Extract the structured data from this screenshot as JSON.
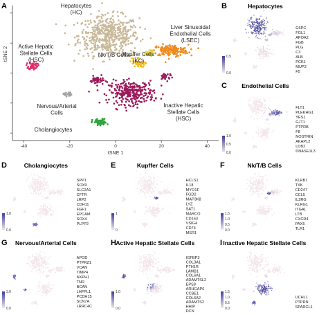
{
  "chart_data": [
    {
      "type": "scatter",
      "panel": "A",
      "xlabel": "tSNE 1",
      "ylabel": "tSNE 2",
      "xlim": [
        -45,
        45
      ],
      "ylim": [
        -45,
        45
      ],
      "xticks": [
        "-40",
        "-20",
        "0",
        "20",
        "40"
      ],
      "yticks": [
        "-40",
        "-20",
        "0",
        "20",
        "40"
      ],
      "grid": false,
      "series": [
        {
          "name": "Hepatocytes (HC)",
          "label_lines": [
            "Hepatocytes",
            "(HC)"
          ],
          "color": "#c9b89a",
          "center": [
            -3,
            25
          ],
          "spread": [
            12,
            12
          ],
          "n": 520
        },
        {
          "name": "Liver Sinusoidal Endothelial Cells (LSEC)",
          "label_lines": [
            "Liver Sinusoidal",
            "Endothelial Cells",
            "(LSEC)"
          ],
          "color": "#f08a1c",
          "center": [
            24,
            15
          ],
          "spread": [
            7,
            3.5
          ],
          "n": 160
        },
        {
          "name": "Active Hepatic Stellate Cells (HSC)",
          "label_lines": [
            "Active Hepatic",
            "Stellate Cells",
            "(HSC)"
          ],
          "color": "#e0306a",
          "center": [
            -36,
            5
          ],
          "spread": [
            1.8,
            2.5
          ],
          "n": 50
        },
        {
          "name": "Nk/T/B Cells",
          "label_lines": [
            "Nk/T/B Cells"
          ],
          "color": "#e8e24a",
          "center": [
            14,
            13
          ],
          "spread": [
            2.5,
            1.8
          ],
          "n": 35
        },
        {
          "name": "Kupffer Cells (KC)",
          "label_lines": [
            "Kupffer Cells",
            "(KC)"
          ],
          "color": "#f7bd1e",
          "center": [
            10,
            6
          ],
          "spread": [
            2.5,
            1.8
          ],
          "n": 40
        },
        {
          "name": "Nervous/Arterial Cells",
          "label_lines": [
            "Nervous/Arterial",
            "Cells"
          ],
          "color": "#a3a3a3",
          "center": [
            -21,
            -14
          ],
          "spread": [
            1.6,
            1.4
          ],
          "n": 25
        },
        {
          "name": "Cholangiocytes",
          "label_lines": [
            "Cholangiocytes"
          ],
          "color": "#2fa23a",
          "center": [
            -7,
            -33
          ],
          "spread": [
            2.8,
            2.2
          ],
          "n": 60
        },
        {
          "name": "Inactive Hepatic Stellate Cells (HSC)",
          "label_lines": [
            "Inactive Hepatic",
            "Stellate Cells",
            "(HSC)"
          ],
          "color": "#9b1b5b",
          "center": [
            7,
            -13
          ],
          "spread": [
            9,
            7
          ],
          "n": 300
        }
      ]
    }
  ],
  "cluster_labels": [
    [
      "Hepatocytes",
      "(HC)"
    ],
    [
      "Liver Sinusoidal",
      "Endothelial Cells",
      "(LSEC)"
    ],
    [
      "Active Hepatic",
      "Stellate Cells",
      "(HSC)"
    ],
    [
      "Nk/T/B Cells"
    ],
    [
      "Kupffer Cells",
      "(KC)"
    ],
    [
      "Nervous/Arterial",
      "Cells"
    ],
    [
      "Cholangiocytes"
    ],
    [
      "Inactive Hepatic",
      "Stellate Cells",
      "(HSC)"
    ]
  ],
  "panels": [
    {
      "label": "B",
      "title": "Hepatocytes",
      "colorbar": [
        "0.5",
        "0.0"
      ],
      "genes": [
        "G6PC",
        "FGL1",
        "APOA2",
        "FGB",
        "PLG",
        "C3",
        "ALB",
        "PCK1",
        "MUP3",
        "F5"
      ]
    },
    {
      "label": "C",
      "title": "Endothelial Cells",
      "colorbar": [
        "1.0",
        "0.5",
        "0.0"
      ],
      "genes": [
        "FLT1",
        "PLEKHG1",
        "YES1",
        "GJT1",
        "PTPRB",
        "F8",
        "NOSTRIN",
        "AKAP12",
        "LDB2",
        "DNASE1L3"
      ]
    },
    {
      "label": "D",
      "title": "Cholangiocytes",
      "colorbar": [
        "1.0",
        "0.0"
      ],
      "genes": [
        "SPP1",
        "SOX9",
        "SLC2A1",
        "CFTR",
        "LRP2",
        "CDH11",
        "FGF1",
        "EPCAM",
        "SOX4",
        "PLPP2"
      ]
    },
    {
      "label": "E",
      "title": "Kupffer Cells",
      "colorbar": [
        "1",
        "0"
      ],
      "genes": [
        "HCLS1",
        "IL18",
        "MYO1F",
        "FGD2",
        "MAP3K8",
        "LYZ",
        "SAT1",
        "MARCO",
        "CD163",
        "VSIG4",
        "CD74",
        "MSR1"
      ]
    },
    {
      "label": "F",
      "title": "Nk/T/B Cells",
      "colorbar": [
        "1.5",
        "1.0",
        "0.5",
        "0.0"
      ],
      "genes": [
        "KLRB1",
        "TXK",
        "CD247",
        "CCL5",
        "IL2RG",
        "KLRG1",
        "ITGAL",
        "LTB",
        "CXCR4",
        "PAX5",
        "TLR1"
      ]
    },
    {
      "label": "G",
      "title": "Nervous/Arterial Cells",
      "colorbar": [
        "3.0",
        "0.0"
      ],
      "genes": [
        "APOD",
        "PTPRZ1",
        "VCAN",
        "TIMP4",
        "NXPH1",
        "TNR",
        "BCAN",
        "LHFPL1",
        "PCDH15",
        "SCN7A",
        "LRRC4C"
      ]
    },
    {
      "label": "H",
      "title": "Active Hepatic Stellate Cells",
      "colorbar": [
        "1.0",
        "0.0"
      ],
      "genes": [
        "IGFBP3",
        "COL3A1",
        "PTH1R",
        "LAMB1",
        "COL6A1",
        "ADAMTSL2",
        "EPS8",
        "ARHGAP6",
        "CCBE1",
        "COL6A2",
        "ADAMTS2",
        "HHIP",
        "DCN"
      ]
    },
    {
      "label": "I",
      "title": "Inactive Hepatic Stellate Cells",
      "colorbar": [
        "1.5",
        "1.0",
        "0.5",
        "0.0"
      ],
      "genes": [
        "UCHL1",
        "PTPRN",
        "SPARCL1"
      ]
    }
  ],
  "panel_a_label": "A",
  "colors": {
    "low": "#f3e6ea",
    "high": "#3c3d9c",
    "axis": "#333333"
  }
}
